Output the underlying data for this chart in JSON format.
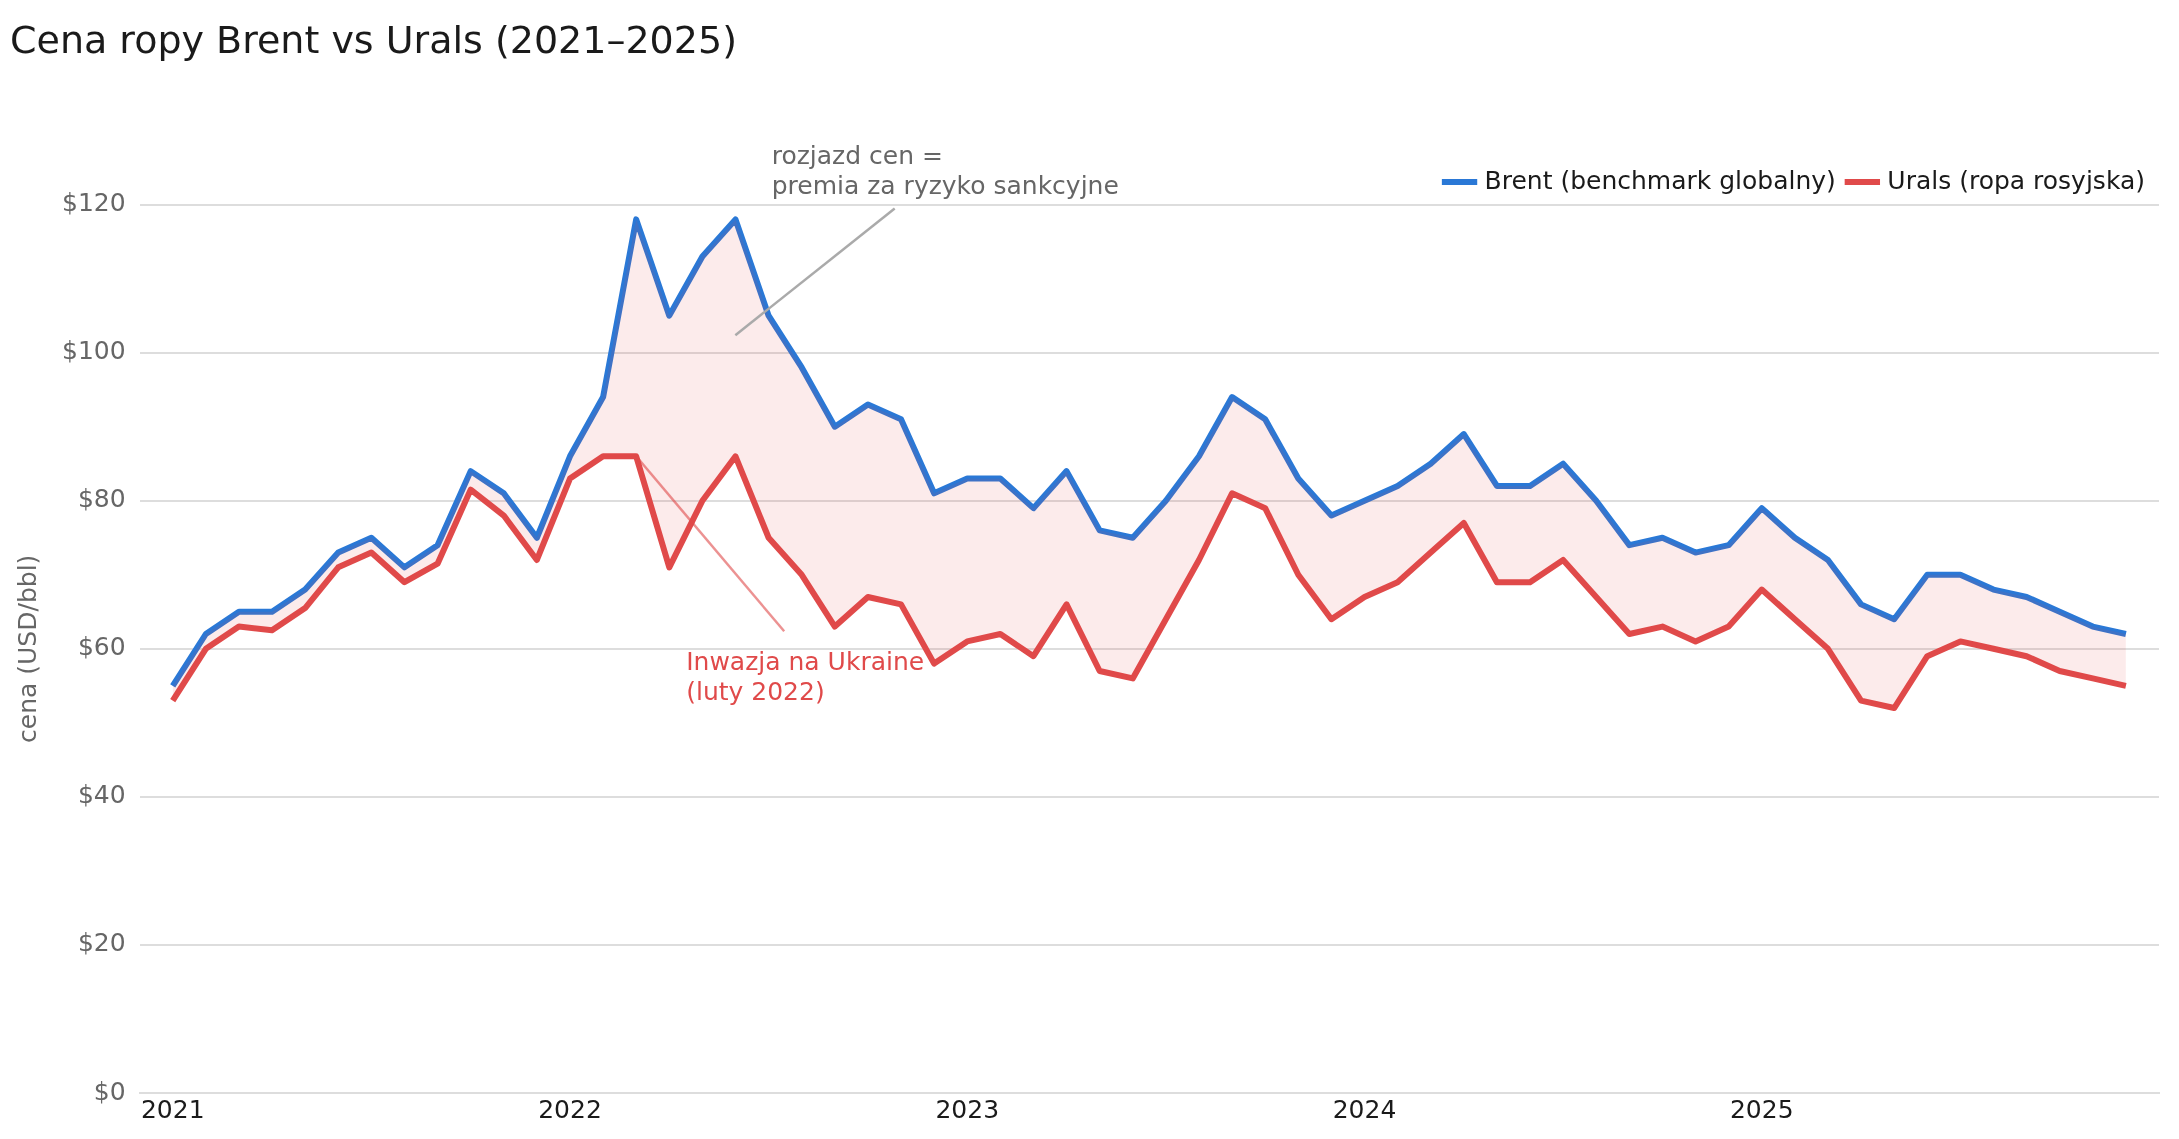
{
  "chart_data": {
    "type": "line",
    "title": "Cena ropy Brent vs Urals (2021–2025)",
    "ylabel": "cena (USD/bbl)",
    "x": [
      "2021-01",
      "2021-02",
      "2021-03",
      "2021-04",
      "2021-05",
      "2021-06",
      "2021-07",
      "2021-08",
      "2021-09",
      "2021-10",
      "2021-11",
      "2021-12",
      "2022-01",
      "2022-02",
      "2022-03",
      "2022-04",
      "2022-05",
      "2022-06",
      "2022-07",
      "2022-08",
      "2022-09",
      "2022-10",
      "2022-11",
      "2022-12",
      "2023-01",
      "2023-02",
      "2023-03",
      "2023-04",
      "2023-05",
      "2023-06",
      "2023-07",
      "2023-08",
      "2023-09",
      "2023-10",
      "2023-11",
      "2023-12",
      "2024-01",
      "2024-02",
      "2024-03",
      "2024-04",
      "2024-05",
      "2024-06",
      "2024-07",
      "2024-08",
      "2024-09",
      "2024-10",
      "2024-11",
      "2024-12",
      "2025-01",
      "2025-02",
      "2025-03",
      "2025-04",
      "2025-05",
      "2025-06",
      "2025-07",
      "2025-08",
      "2025-09",
      "2025-10",
      "2025-11",
      "2025-12"
    ],
    "series": [
      {
        "name": "Brent (benchmark globalny)",
        "color": "#2a78d6",
        "values": [
          55,
          62,
          65,
          65,
          68,
          73,
          75,
          71,
          74,
          84,
          81,
          75,
          86,
          94,
          118,
          105,
          113,
          118,
          105,
          98,
          90,
          93,
          91,
          81,
          83,
          83,
          79,
          84,
          76,
          75,
          80,
          86,
          94,
          91,
          83,
          78,
          80,
          82,
          85,
          89,
          82,
          82,
          85,
          80,
          74,
          75,
          73,
          74,
          79,
          75,
          72,
          66,
          64,
          70,
          70,
          68,
          67,
          65,
          63,
          62
        ]
      },
      {
        "name": "Urals (ropa rosyjska)",
        "color": "#e04a4a",
        "values": [
          53,
          60,
          63,
          62.5,
          65.5,
          71,
          73,
          69,
          71.5,
          81.5,
          78,
          72,
          83,
          86,
          86,
          71,
          80,
          86,
          75,
          70,
          63,
          67,
          66,
          58,
          61,
          62,
          59,
          66,
          57,
          56,
          64,
          72,
          81,
          79,
          70,
          64,
          67,
          69,
          73,
          77,
          69,
          69,
          72,
          67,
          62,
          63,
          61,
          63,
          68,
          64,
          60,
          53,
          52,
          59,
          61,
          60,
          59,
          57,
          56,
          55
        ],
        "lower": [
          53,
          60,
          63,
          62.5,
          65.5,
          71,
          73,
          69,
          71.5,
          81.5,
          78,
          72,
          83,
          86,
          86,
          71,
          80,
          86,
          75,
          70,
          63,
          67,
          66,
          58,
          61,
          62,
          59,
          66,
          57,
          56,
          64,
          72,
          81,
          79,
          70,
          64,
          67,
          69,
          73,
          77,
          69,
          69,
          72,
          67,
          62,
          63,
          61,
          63,
          68,
          64,
          60,
          53,
          52,
          59,
          61,
          60,
          59,
          57,
          56,
          55
        ],
        "upper": [
          55,
          62,
          65,
          65,
          68,
          73,
          75,
          71,
          74,
          84,
          81,
          75,
          86,
          94,
          118,
          105,
          113,
          118,
          105,
          98,
          90,
          93,
          91,
          81,
          83,
          83,
          79,
          84,
          76,
          75,
          80,
          86,
          94,
          91,
          83,
          78,
          80,
          82,
          85,
          89,
          82,
          82,
          85,
          80,
          74,
          75,
          73,
          74,
          79,
          75,
          72,
          66,
          64,
          70,
          70,
          68,
          67,
          65,
          63,
          62
        ]
      }
    ],
    "xlim": [
      "2020-12",
      "2026-01"
    ],
    "xticks": [
      {
        "value": "2021-01",
        "label": "2021"
      },
      {
        "value": "2022-01",
        "label": "2022"
      },
      {
        "value": "2023-01",
        "label": "2023"
      },
      {
        "value": "2024-01",
        "label": "2024"
      },
      {
        "value": "2025-01",
        "label": "2025"
      }
    ],
    "ylim": [
      0,
      120
    ],
    "yticks": [
      {
        "value": 0,
        "label": "$0"
      },
      {
        "value": 20,
        "label": "$20"
      },
      {
        "value": 40,
        "label": "$40"
      },
      {
        "value": 60,
        "label": "$60"
      },
      {
        "value": 80,
        "label": "$80"
      },
      {
        "value": 100,
        "label": "$100"
      },
      {
        "value": 120,
        "label": "$120"
      }
    ],
    "annotations": [
      "rozjazd cen =\npremia za ryzyko sankcyjne",
      {
        "text": "Inwazja na Ukraine\n(luty 2022)",
        "x": "2022-03",
        "y": 86
      }
    ],
    "grid": "y",
    "legend": "top right",
    "marker": "none",
    "line_style": "solid"
  }
}
